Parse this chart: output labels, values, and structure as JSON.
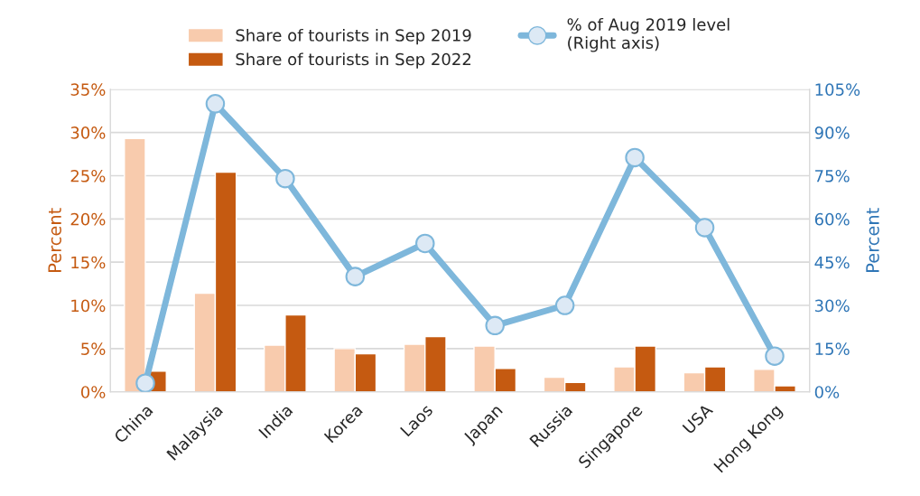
{
  "chart_data": {
    "type": "bar",
    "categories": [
      "China",
      "Malaysia",
      "India",
      "Korea",
      "Laos",
      "Japan",
      "Russia",
      "Singapore",
      "USA",
      "Hong Kong"
    ],
    "series": [
      {
        "name": "Share of tourists in Sep 2019",
        "color": "#f8cbad",
        "values": [
          29.3,
          11.4,
          5.4,
          5.0,
          5.5,
          5.3,
          1.7,
          2.9,
          2.2,
          2.6
        ]
      },
      {
        "name": "Share of tourists in Sep 2022",
        "color": "#c55a11",
        "values": [
          2.4,
          25.4,
          8.9,
          4.4,
          6.4,
          2.7,
          1.1,
          5.3,
          2.9,
          0.7
        ]
      },
      {
        "name": "% of Aug 2019 level\n(Right axis)",
        "type": "line",
        "axis": "y2",
        "color": "#7eb7db",
        "marker": "circle",
        "values": [
          3,
          100,
          74,
          40,
          51.5,
          23,
          30,
          81.3,
          57,
          12.4
        ]
      }
    ],
    "ylabel": "Percent",
    "y2label": "Percent",
    "ylim": [
      0,
      35
    ],
    "yticks": [
      {
        "value": 0,
        "label": "0%"
      },
      {
        "value": 5,
        "label": "5%"
      },
      {
        "value": 10,
        "label": "10%"
      },
      {
        "value": 15,
        "label": "15%"
      },
      {
        "value": 20,
        "label": "20%"
      },
      {
        "value": 25,
        "label": "25%"
      },
      {
        "value": 30,
        "label": "30%"
      },
      {
        "value": 35,
        "label": "35%"
      }
    ],
    "y2lim": [
      0,
      105
    ],
    "y2ticks": [
      {
        "value": 0,
        "label": "0%"
      },
      {
        "value": 15,
        "label": "15%"
      },
      {
        "value": 30,
        "label": "30%"
      },
      {
        "value": 45,
        "label": "45%"
      },
      {
        "value": 60,
        "label": "60%"
      },
      {
        "value": 75,
        "label": "75%"
      },
      {
        "value": 90,
        "label": "90%"
      },
      {
        "value": 105,
        "label": "105%"
      }
    ],
    "grid": "y",
    "legend": "top"
  }
}
